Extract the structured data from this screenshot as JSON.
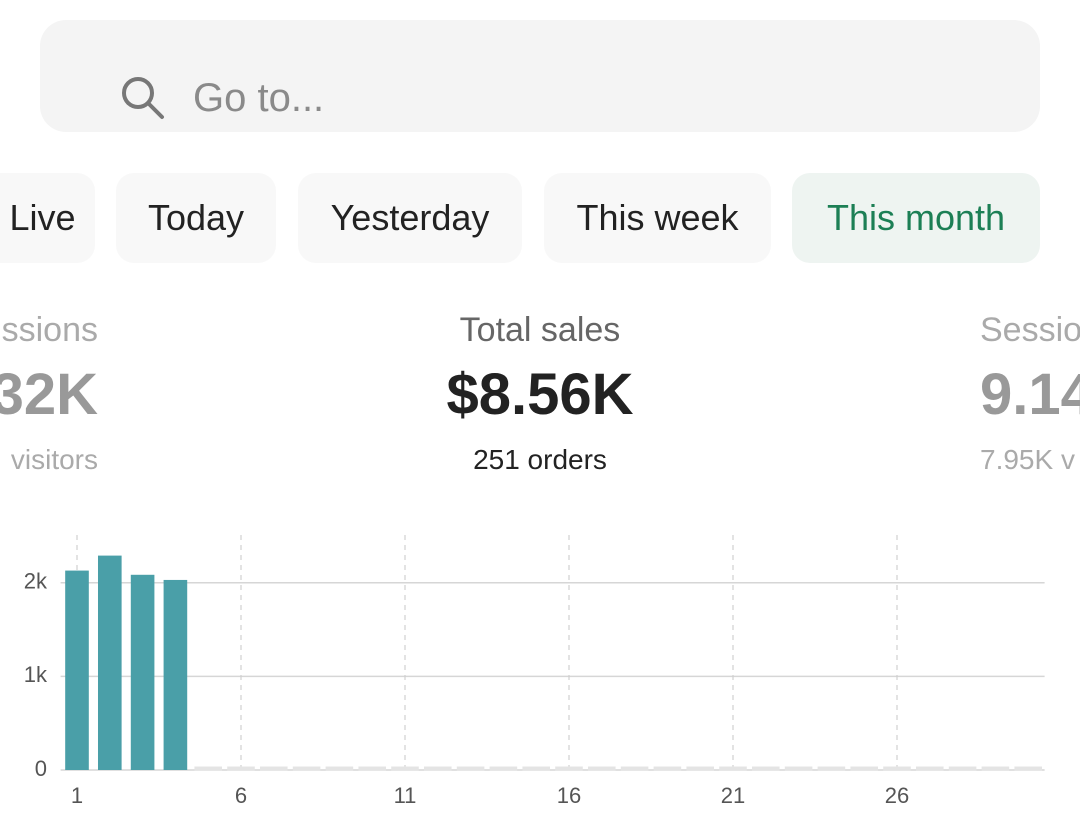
{
  "search": {
    "placeholder": "Go to..."
  },
  "tabs": [
    {
      "label": "Live"
    },
    {
      "label": "Today"
    },
    {
      "label": "Yesterday"
    },
    {
      "label": "This week"
    },
    {
      "label": "This month",
      "selected": true
    }
  ],
  "metrics": [
    {
      "label": "ssions",
      "value": "32K",
      "sub": "visitors"
    },
    {
      "label": "Total sales",
      "value": "$8.56K",
      "sub": "251 orders"
    },
    {
      "label": "Sessio",
      "value": "9.14",
      "sub": "7.95K v"
    }
  ],
  "chart_data": {
    "type": "bar",
    "x": [
      1,
      2,
      3,
      4,
      5,
      6,
      7,
      8,
      9,
      10,
      11,
      12,
      13,
      14,
      15,
      16,
      17,
      18,
      19,
      20,
      21,
      22,
      23,
      24,
      25,
      26,
      27,
      28,
      29,
      30
    ],
    "values": [
      2130,
      2290,
      2085,
      2030,
      null,
      null,
      null,
      null,
      null,
      null,
      null,
      null,
      null,
      null,
      null,
      null,
      null,
      null,
      null,
      null,
      null,
      null,
      null,
      null,
      null,
      null,
      null,
      null,
      null,
      null
    ],
    "color": "#4a9fa8",
    "xlim": [
      0.5,
      30.5
    ],
    "xticks": [
      1,
      6,
      11,
      16,
      21,
      26
    ],
    "ylim": [
      0,
      2510
    ],
    "yticks": [
      0,
      {
        "value": 1000,
        "label": "1k"
      },
      {
        "value": 2000,
        "label": "2k"
      }
    ],
    "grid": true
  }
}
